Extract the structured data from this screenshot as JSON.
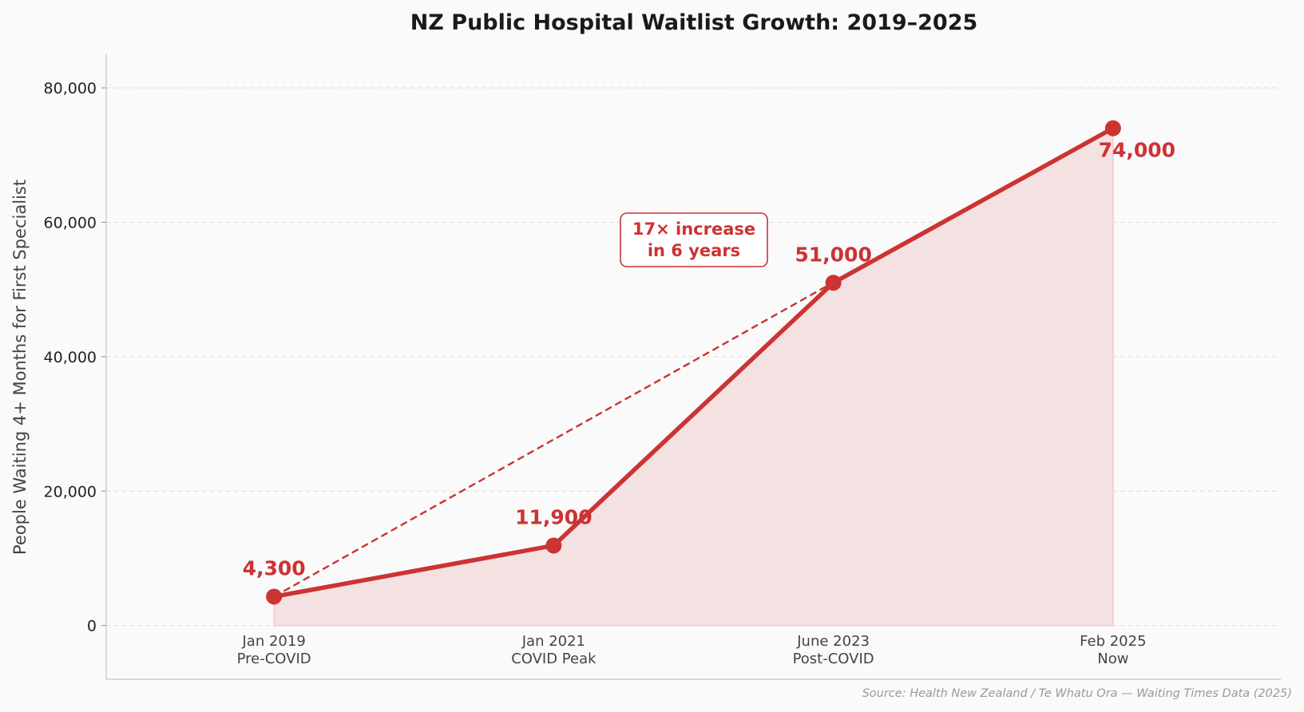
{
  "chart_data": {
    "type": "line",
    "title": "NZ Public Hospital Waitlist Growth: 2019–2025",
    "xlabel": "",
    "ylabel": "People Waiting 4+ Months for First Specialist",
    "categories": [
      {
        "line1": "Jan 2019",
        "line2": "Pre-COVID"
      },
      {
        "line1": "Jan 2021",
        "line2": "COVID Peak"
      },
      {
        "line1": "June 2023",
        "line2": "Post-COVID"
      },
      {
        "line1": "Feb 2025",
        "line2": "Now"
      }
    ],
    "values": [
      4300,
      11900,
      51000,
      74000
    ],
    "data_labels": [
      "4,300",
      "11,900",
      "51,000",
      "74,000"
    ],
    "ylim": [
      -8000,
      85000
    ],
    "xlim": [
      -0.6,
      3.6
    ],
    "yticks": [
      0,
      20000,
      40000,
      60000,
      80000
    ],
    "ytick_labels": [
      "0",
      "20,000",
      "40,000",
      "60,000",
      "80,000"
    ],
    "grid": true,
    "fill_under_line": true,
    "annotation": {
      "line1": "17× increase",
      "line2": "in 6 years",
      "arrow_from_index": 0,
      "arrow_to_index": 2
    },
    "source": "Source: Health New Zealand / Te Whatu Ora — Waiting Times Data (2025)",
    "colors": {
      "line": "#cc3333",
      "fill": "#f4e1e1",
      "grid": "#dddddd",
      "axis": "#cccccc",
      "source": "#999999"
    }
  }
}
